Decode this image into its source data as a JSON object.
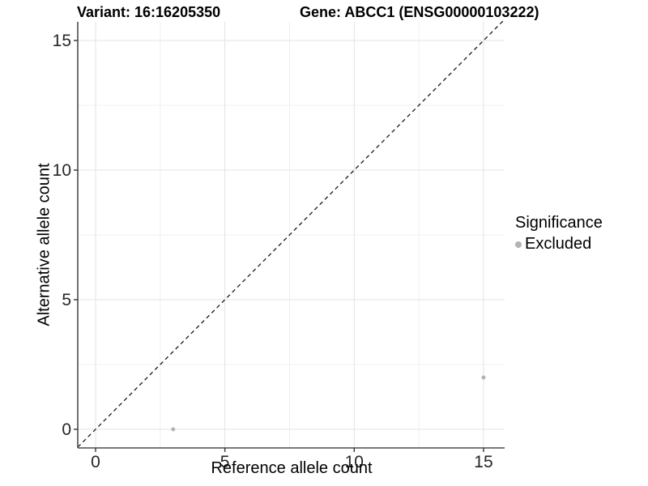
{
  "chart_data": {
    "type": "scatter",
    "title_left": "Variant: 16:16205350",
    "title_right": "Gene: ABCC1 (ENSG00000103222)",
    "xlabel": "Reference allele count",
    "ylabel": "Alternative allele count",
    "xlim": [
      -0.7,
      15.8
    ],
    "ylim": [
      -0.7,
      16.4
    ],
    "x_ticks": [
      0,
      5,
      10,
      15
    ],
    "y_ticks": [
      0,
      5,
      10,
      15
    ],
    "x_minor_ticks": [
      2.5,
      7.5,
      12.5
    ],
    "y_minor_ticks": [
      2.5,
      7.5,
      12.5
    ],
    "grid": true,
    "identity_line": {
      "style": "dashed",
      "from": [
        -0.69,
        -0.69
      ],
      "to": [
        15.8,
        15.8
      ]
    },
    "series": [
      {
        "name": "Excluded",
        "points": [
          {
            "x": 3,
            "y": 0
          },
          {
            "x": 15,
            "y": 2
          }
        ]
      }
    ],
    "legend": {
      "title": "Significance",
      "position": "right",
      "entries": [
        {
          "label": "Excluded",
          "color": "#b3b3b3"
        }
      ]
    }
  },
  "colors": {
    "point": "#b3b3b3",
    "grid_major": "#e3e3e3",
    "grid_minor": "#f0f0f0",
    "axis_line": "#4d4d4d",
    "tick_mark": "#333333",
    "tick_label": "#262626",
    "identity_line": "#1a1a1a",
    "background": "#ffffff"
  }
}
